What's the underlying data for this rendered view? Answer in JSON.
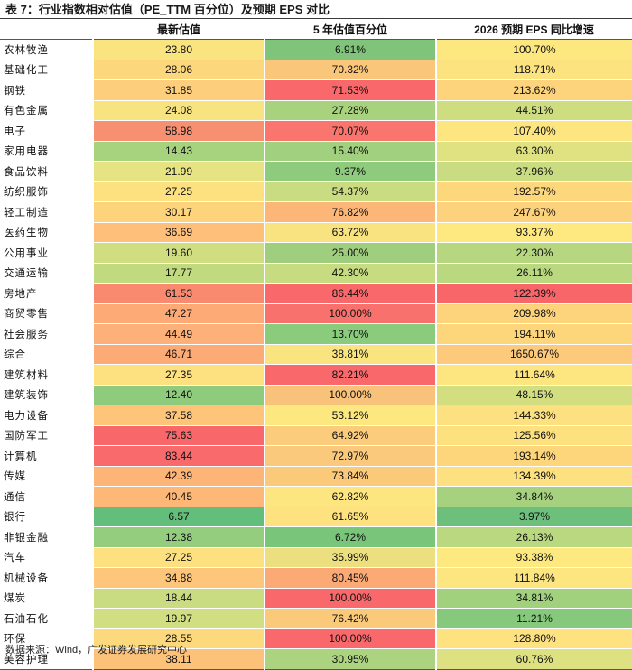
{
  "title": "表 7：行业指数相对估值（PE_TTM 百分位）及预期 EPS 对比",
  "headers": [
    "",
    "最新估值",
    "5 年估值百分位",
    "2026 预期 EPS 同比增速"
  ],
  "rows": [
    {
      "industry": "农林牧渔",
      "pe": "23.80",
      "pct": "6.91%",
      "eps": "100.70%",
      "c": [
        "#f9e47f",
        "#7fc47a",
        "#fde880"
      ]
    },
    {
      "industry": "基础化工",
      "pe": "28.06",
      "pct": "70.32%",
      "eps": "118.71%",
      "c": [
        "#fdd77c",
        "#f9c67a",
        "#fde37f"
      ]
    },
    {
      "industry": "钢铁",
      "pe": "31.85",
      "pct": "71.53%",
      "eps": "213.62%",
      "c": [
        "#fdcf7c",
        "#f9686b",
        "#fdd47c"
      ]
    },
    {
      "industry": "有色金属",
      "pe": "24.08",
      "pct": "27.28%",
      "eps": "44.51%",
      "c": [
        "#f7e480",
        "#a8d27e",
        "#cfdd81"
      ]
    },
    {
      "industry": "电子",
      "pe": "58.98",
      "pct": "70.07%",
      "eps": "107.40%",
      "c": [
        "#f79070",
        "#f9756d",
        "#fde680"
      ]
    },
    {
      "industry": "家用电器",
      "pe": "14.43",
      "pct": "15.40%",
      "eps": "63.30%",
      "c": [
        "#a7d27e",
        "#a1d07e",
        "#e0e282"
      ]
    },
    {
      "industry": "食品饮料",
      "pe": "21.99",
      "pct": "9.37%",
      "eps": "37.96%",
      "c": [
        "#e6e382",
        "#8ecb7c",
        "#c9dc81"
      ]
    },
    {
      "industry": "纺织服饰",
      "pe": "27.25",
      "pct": "54.37%",
      "eps": "192.57%",
      "c": [
        "#fde080",
        "#cadc81",
        "#fdd77c"
      ]
    },
    {
      "industry": "轻工制造",
      "pe": "30.17",
      "pct": "76.82%",
      "eps": "247.67%",
      "c": [
        "#fdd47c",
        "#fbb678",
        "#fdd27c"
      ]
    },
    {
      "industry": "医药生物",
      "pe": "36.69",
      "pct": "63.72%",
      "eps": "93.37%",
      "c": [
        "#fdbf79",
        "#f9e381",
        "#fde980"
      ]
    },
    {
      "industry": "公用事业",
      "pe": "19.60",
      "pct": "25.00%",
      "eps": "22.30%",
      "c": [
        "#d0de81",
        "#9fcf7e",
        "#b6d67f"
      ]
    },
    {
      "industry": "交通运输",
      "pe": "17.77",
      "pct": "42.30%",
      "eps": "26.11%",
      "c": [
        "#c1da80",
        "#c7db81",
        "#bad87f"
      ]
    },
    {
      "industry": "房地产",
      "pe": "61.53",
      "pct": "86.44%",
      "eps": "122.39%",
      "c": [
        "#f98a6f",
        "#f9696b",
        "#f9666a"
      ]
    },
    {
      "industry": "商贸零售",
      "pe": "47.27",
      "pct": "100.00%",
      "eps": "209.98%",
      "c": [
        "#fdaa76",
        "#f9716c",
        "#fdd37c"
      ]
    },
    {
      "industry": "社会服务",
      "pe": "44.49",
      "pct": "13.70%",
      "eps": "194.11%",
      "c": [
        "#fdb077",
        "#8acb7c",
        "#fdd67c"
      ]
    },
    {
      "industry": "综合",
      "pe": "46.71",
      "pct": "38.81%",
      "eps": "1650.67%",
      "c": [
        "#fcab76",
        "#f9e480",
        "#fdca7b"
      ]
    },
    {
      "industry": "建筑材料",
      "pe": "27.35",
      "pct": "82.21%",
      "eps": "111.64%",
      "c": [
        "#fde080",
        "#f9686b",
        "#fde57f"
      ]
    },
    {
      "industry": "建筑装饰",
      "pe": "12.40",
      "pct": "100.00%",
      "eps": "48.15%",
      "c": [
        "#8fcb7c",
        "#f9c27a",
        "#d3de81"
      ]
    },
    {
      "industry": "电力设备",
      "pe": "37.58",
      "pct": "53.12%",
      "eps": "144.33%",
      "c": [
        "#fdc47a",
        "#fde880",
        "#fde07f"
      ]
    },
    {
      "industry": "国防军工",
      "pe": "75.63",
      "pct": "64.92%",
      "eps": "125.56%",
      "c": [
        "#f8686b",
        "#fbcc7b",
        "#fde17f"
      ]
    },
    {
      "industry": "计算机",
      "pe": "83.44",
      "pct": "72.97%",
      "eps": "193.14%",
      "c": [
        "#f86a6b",
        "#fbc97b",
        "#fdd67c"
      ]
    },
    {
      "industry": "传媒",
      "pe": "42.39",
      "pct": "73.84%",
      "eps": "134.39%",
      "c": [
        "#fdb477",
        "#fbc97a",
        "#fde07f"
      ]
    },
    {
      "industry": "通信",
      "pe": "40.45",
      "pct": "62.82%",
      "eps": "34.84%",
      "c": [
        "#fdb878",
        "#fde680",
        "#a6d17e"
      ]
    },
    {
      "industry": "银行",
      "pe": "6.57",
      "pct": "61.65%",
      "eps": "3.97%",
      "c": [
        "#63be7b",
        "#fde27f",
        "#6cc07b"
      ]
    },
    {
      "industry": "非银金融",
      "pe": "12.38",
      "pct": "6.72%",
      "eps": "26.13%",
      "c": [
        "#94cd7d",
        "#79c57a",
        "#bad87f"
      ]
    },
    {
      "industry": "汽车",
      "pe": "27.25",
      "pct": "35.99%",
      "eps": "93.38%",
      "c": [
        "#fde080",
        "#ecdf80",
        "#fde980"
      ]
    },
    {
      "industry": "机械设备",
      "pe": "34.88",
      "pct": "80.45%",
      "eps": "111.84%",
      "c": [
        "#fdc67a",
        "#fbaa76",
        "#fde57f"
      ]
    },
    {
      "industry": "煤炭",
      "pe": "18.44",
      "pct": "100.00%",
      "eps": "34.81%",
      "c": [
        "#c9dc81",
        "#f9696b",
        "#a2d17e"
      ]
    },
    {
      "industry": "石油石化",
      "pe": "19.97",
      "pct": "76.42%",
      "eps": "11.21%",
      "c": [
        "#d1de81",
        "#fbc97a",
        "#86c97c"
      ]
    },
    {
      "industry": "环保",
      "pe": "28.55",
      "pct": "100.00%",
      "eps": "128.80%",
      "c": [
        "#fdd97d",
        "#f9696b",
        "#fde27f"
      ]
    },
    {
      "industry": "美容护理",
      "pe": "38.11",
      "pct": "30.95%",
      "eps": "60.76%",
      "c": [
        "#fdc27a",
        "#acd37f",
        "#dde182"
      ]
    }
  ],
  "source": "数据来源：Wind，广发证券发展研究中心"
}
